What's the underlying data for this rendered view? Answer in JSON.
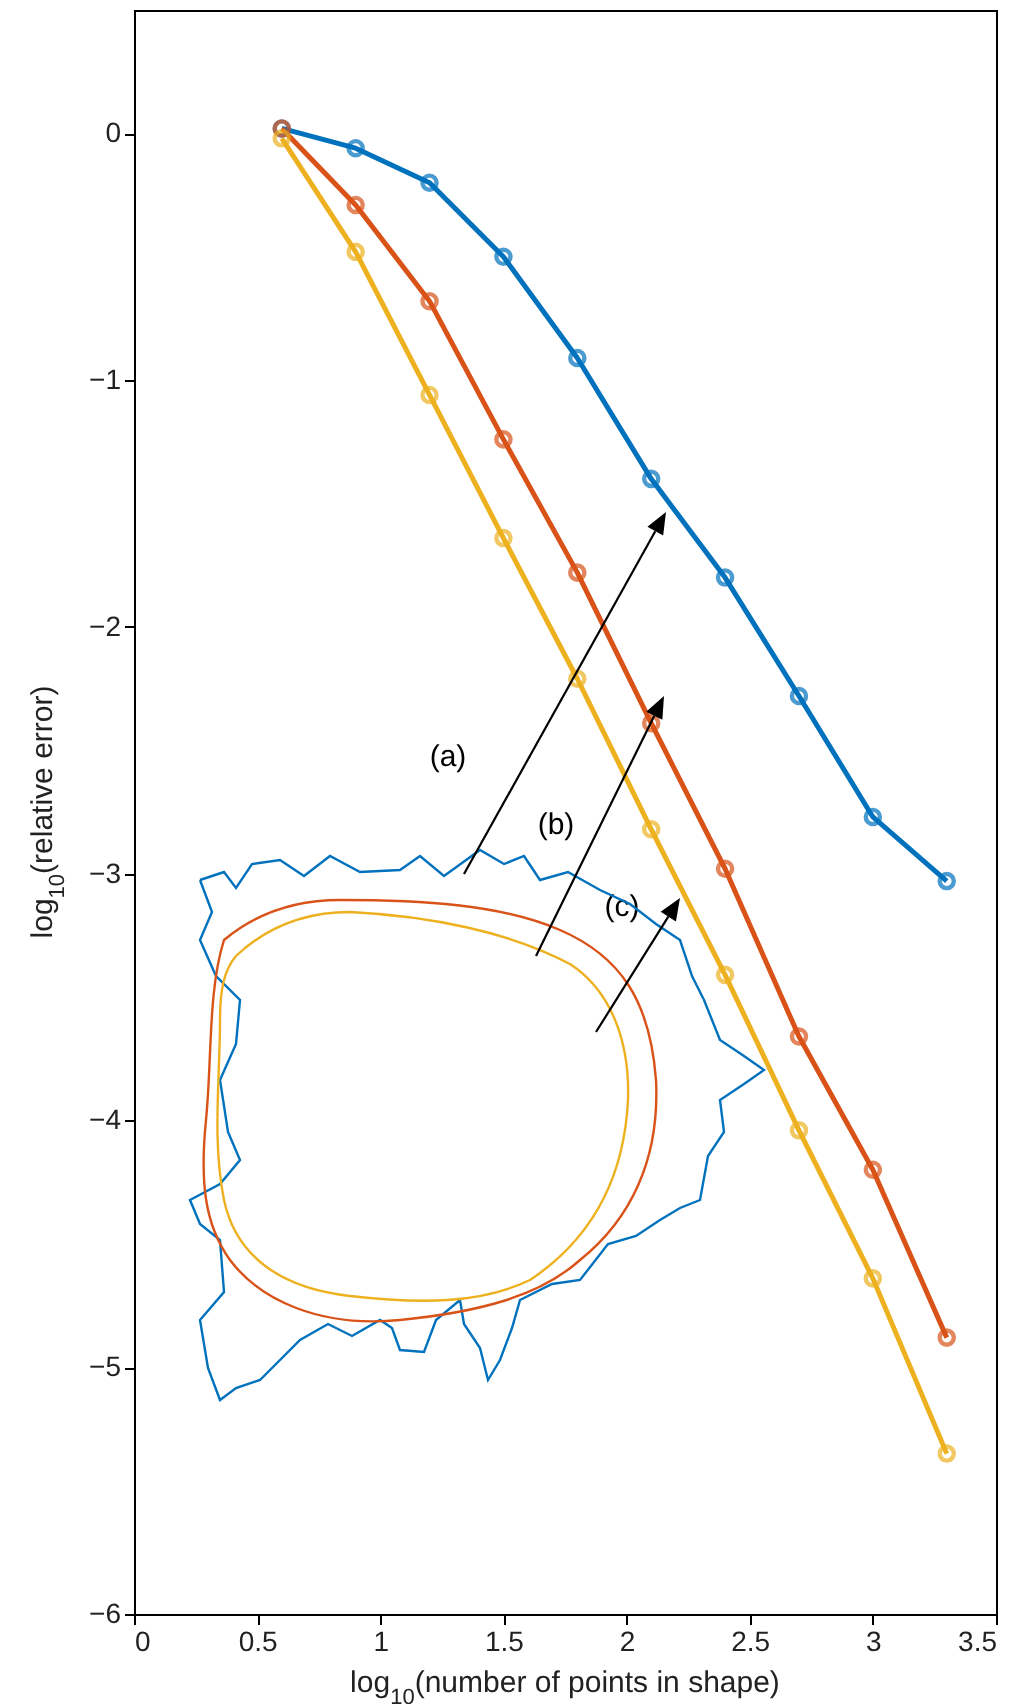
{
  "chart_data": {
    "type": "line",
    "xlabel": "log$_{10}$(number of points in shape)",
    "ylabel": "log$_{10}$(relative error)",
    "x": [
      0.6,
      0.9,
      1.2,
      1.5,
      1.8,
      2.1,
      2.4,
      2.7,
      3.0,
      3.3
    ],
    "series": [
      {
        "color": "#0072bd",
        "values": [
          0.02,
          -0.06,
          -0.2,
          -0.5,
          -0.91,
          -1.4,
          -1.8,
          -2.28,
          -2.77,
          -3.03
        ]
      },
      {
        "color": "#d95319",
        "values": [
          0.02,
          -0.29,
          -0.68,
          -1.24,
          -1.78,
          -2.39,
          -2.98,
          -3.66,
          -4.2,
          -4.88
        ]
      },
      {
        "color": "#edb120",
        "values": [
          -0.02,
          -0.48,
          -1.06,
          -1.64,
          -2.21,
          -2.82,
          -3.41,
          -4.04,
          -4.64,
          -5.35
        ]
      }
    ],
    "xlim": [
      0,
      3.5
    ],
    "xticks": [
      0,
      0.5,
      1,
      1.5,
      2,
      2.5,
      3,
      3.5
    ],
    "ylim": [
      -6,
      0.5
    ],
    "yticks": [
      -6,
      -5,
      -4,
      -3,
      -2,
      -1,
      0
    ],
    "marker": "circle",
    "line_style": "solid",
    "grid": false,
    "annotations": [
      "(a)",
      "(b)",
      "(c)"
    ]
  }
}
